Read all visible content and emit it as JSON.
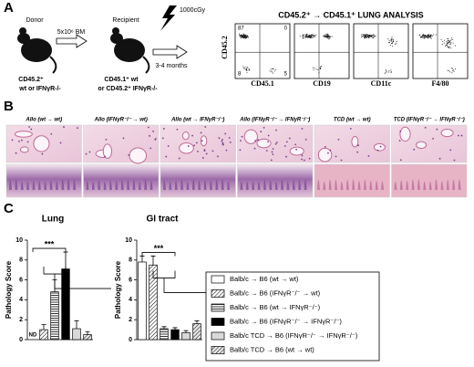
{
  "panel_labels": [
    "A",
    "B",
    "C"
  ],
  "panel_a": {
    "donor": "Donor",
    "transfer": "5x10⁶ BM",
    "recipient": "Recipient",
    "dose": "1000cGy",
    "duration": "3-4 months",
    "donor_genotype": [
      "CD45.2⁺",
      "wt or IFNγR-/-"
    ],
    "recipient_genotype": [
      "CD45.1⁺ wt",
      "or CD45.2⁺ IFNγR-/-"
    ],
    "analysis_title": "CD45.2⁺ → CD45.1⁺ LUNG ANALYSIS",
    "y_axis": "CD45.2",
    "plots": [
      {
        "x_axis": "CD45.1",
        "quadrants": [
          87,
          0,
          8,
          5
        ]
      },
      {
        "x_axis": "CD19"
      },
      {
        "x_axis": "CD11c"
      },
      {
        "x_axis": "F4/80"
      }
    ]
  },
  "panel_b": {
    "columns": [
      "Allo (wt → wt)",
      "Allo (IFNγR⁻/⁻ → wt)",
      "Allo (wt → IFNγR⁻/⁻)",
      "Allo (IFNγR⁻/⁻ → IFNγR⁻/⁻)",
      "TCD (wt → wt)",
      "TCD (IFNγR⁻/⁻ → IFNγR⁻/⁻)"
    ]
  },
  "legend": [
    {
      "label": "Balb/c → B6 (wt → wt)",
      "fill": "#ffffff",
      "hatch": null
    },
    {
      "label": "Balb/c → B6 (IFNγR⁻/⁻ → wt)",
      "fill": "#ffffff",
      "hatch": "diagonal"
    },
    {
      "label": "Balb/c → B6 (wt → IFNγR⁻/⁻)",
      "fill": "#ffffff",
      "hatch": "horizontal"
    },
    {
      "label": "Balb/c → B6 (IFNγR⁻/⁻ → IFNγR⁻/⁻)",
      "fill": "#000000",
      "hatch": null
    },
    {
      "label": "Balb/c TCD → B6 (IFNγR⁻/⁻ → IFNγR⁻/⁻)",
      "fill": "#d9d9d9",
      "hatch": null
    },
    {
      "label": "Balb/c TCD → B6 (wt → wt)",
      "fill": "#e8e8e8",
      "hatch": "diagonal"
    }
  ],
  "chart_data": [
    {
      "type": "bar",
      "title": "Lung",
      "y_label": "Pathology Score",
      "values": [
        null,
        1.0,
        4.8,
        7.1,
        1.1,
        0.5
      ],
      "errors": [
        null,
        0.5,
        1.2,
        1.7,
        0.8,
        0.3
      ],
      "annotation": "ND",
      "significance": "***",
      "ylim": [
        0,
        10
      ],
      "yticks": [
        0,
        2,
        4,
        6,
        8,
        10
      ]
    },
    {
      "type": "bar",
      "title": "GI tract",
      "y_label": "Pathology Score",
      "values": [
        7.8,
        7.5,
        1.1,
        1.0,
        0.7,
        1.6
      ],
      "errors": [
        0.6,
        0.9,
        0.2,
        0.2,
        0.2,
        0.3
      ],
      "significance": "***",
      "ylim": [
        0,
        10
      ],
      "yticks": [
        0,
        2,
        4,
        6,
        8,
        10
      ]
    }
  ]
}
